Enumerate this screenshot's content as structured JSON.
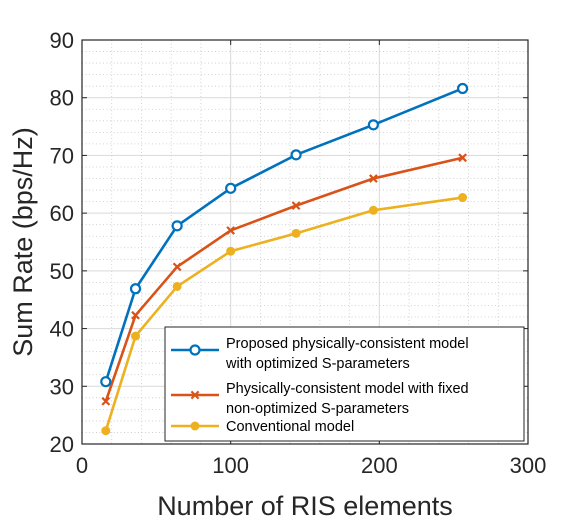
{
  "chart_data": {
    "type": "line",
    "title": "",
    "xlabel": "Number of RIS elements",
    "ylabel": "Sum Rate (bps/Hz)",
    "xlim": [
      0,
      300
    ],
    "ylim": [
      20,
      90
    ],
    "x_ticks": [
      "0",
      "100",
      "200",
      "300"
    ],
    "y_ticks": [
      "20",
      "30",
      "40",
      "50",
      "60",
      "70",
      "80",
      "90"
    ],
    "x_tick_values": [
      0,
      100,
      200,
      300
    ],
    "y_tick_values": [
      20,
      30,
      40,
      50,
      60,
      70,
      80,
      90
    ],
    "grid": true,
    "minor_grid": true,
    "legend_position": "bottom-right",
    "series": [
      {
        "name": "Proposed physically-consistent model with optimized S-parameters",
        "legend_lines": [
          "Proposed physically-consistent model",
          "with optimized S-parameters"
        ],
        "color": "#0072BD",
        "marker": "circle",
        "x": [
          16,
          36,
          64,
          100,
          144,
          196,
          256
        ],
        "y": [
          30.8,
          46.9,
          57.8,
          64.3,
          70.1,
          75.3,
          81.6
        ]
      },
      {
        "name": "Physically-consistent model with fixed non-optimized S-parameters",
        "legend_lines": [
          "Physically-consistent model with fixed",
          "non-optimized S-parameters"
        ],
        "color": "#D95319",
        "marker": "x",
        "x": [
          16,
          36,
          64,
          100,
          144,
          196,
          256
        ],
        "y": [
          27.4,
          42.3,
          50.7,
          57.0,
          61.3,
          66.0,
          69.6
        ]
      },
      {
        "name": "Conventional model",
        "legend_lines": [
          "Conventional model"
        ],
        "color": "#EDB120",
        "marker": "dot",
        "x": [
          16,
          36,
          64,
          100,
          144,
          196,
          256
        ],
        "y": [
          22.3,
          38.7,
          47.3,
          53.4,
          56.5,
          60.5,
          62.7
        ]
      }
    ]
  }
}
